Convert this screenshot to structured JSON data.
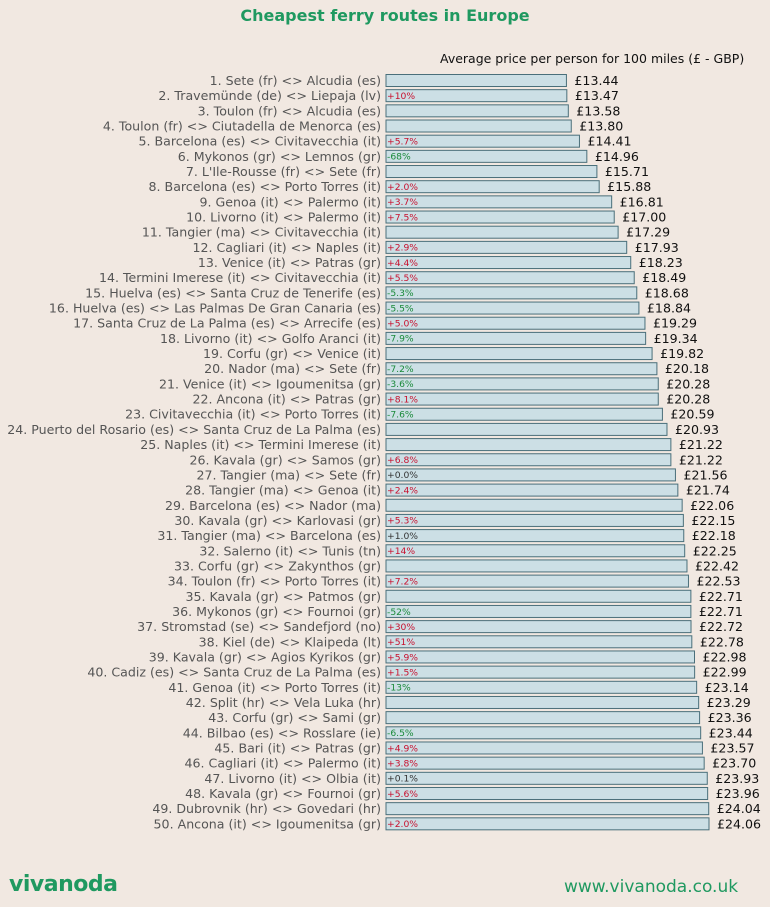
{
  "header": {
    "title": "Cheapest ferry routes in Europe",
    "subtitle": "Average price per person for 100 miles (£ - GBP)"
  },
  "footer": {
    "brand": "vivanoda",
    "website": "www.vivanoda.co.uk"
  },
  "colors": {
    "accent": "#1f9960",
    "bar_fill": "#ccdfe5",
    "bar_stroke": "#4a6f7a",
    "increase": "#c8102e",
    "decrease": "#1a8a3a",
    "neutral": "#333333"
  },
  "chart_data": {
    "type": "bar",
    "orientation": "horizontal",
    "title": "Cheapest ferry routes in Europe",
    "subtitle": "Average price per person for 100 miles (£ - GBP)",
    "currency": "£",
    "xlim": [
      0,
      24.06
    ],
    "grid": false,
    "categories": [
      "1. Sete (fr) <> Alcudia (es)",
      "2. Travemünde (de) <> Liepaja (lv)",
      "3. Toulon (fr) <> Alcudia (es)",
      "4. Toulon (fr) <> Ciutadella de Menorca (es)",
      "5. Barcelona (es) <> Civitavecchia (it)",
      "6. Mykonos (gr) <> Lemnos (gr)",
      "7. L'Ile-Rousse (fr) <> Sete (fr)",
      "8. Barcelona (es) <> Porto Torres (it)",
      "9. Genoa (it) <> Palermo (it)",
      "10. Livorno (it) <> Palermo (it)",
      "11. Tangier (ma) <> Civitavecchia (it)",
      "12. Cagliari (it) <> Naples (it)",
      "13. Venice (it) <> Patras (gr)",
      "14. Termini Imerese (it) <> Civitavecchia (it)",
      "15. Huelva (es) <> Santa Cruz de Tenerife (es)",
      "16. Huelva (es) <> Las Palmas De Gran Canaria (es)",
      "17. Santa Cruz de La Palma (es) <> Arrecife (es)",
      "18. Livorno (it) <> Golfo Aranci (it)",
      "19. Corfu (gr) <> Venice (it)",
      "20. Nador (ma) <> Sete (fr)",
      "21. Venice (it) <> Igoumenitsa (gr)",
      "22. Ancona (it) <> Patras (gr)",
      "23. Civitavecchia (it) <> Porto Torres (it)",
      "24. Puerto del Rosario (es) <> Santa Cruz de La Palma (es)",
      "25. Naples (it) <> Termini Imerese (it)",
      "26. Kavala (gr) <> Samos (gr)",
      "27. Tangier (ma) <> Sete (fr)",
      "28. Tangier (ma) <> Genoa (it)",
      "29. Barcelona (es) <> Nador (ma)",
      "30. Kavala (gr) <> Karlovasi (gr)",
      "31. Tangier (ma) <> Barcelona (es)",
      "32. Salerno (it) <> Tunis (tn)",
      "33. Corfu (gr) <> Zakynthos (gr)",
      "34. Toulon (fr) <> Porto Torres (it)",
      "35. Kavala (gr) <> Patmos (gr)",
      "36. Mykonos (gr) <> Fournoi (gr)",
      "37. Stromstad (se) <> Sandefjord (no)",
      "38. Kiel (de) <> Klaipeda (lt)",
      "39. Kavala (gr) <> Agios Kyrikos (gr)",
      "40. Cadiz (es) <> Santa Cruz de La Palma (es)",
      "41. Genoa (it) <> Porto Torres (it)",
      "42. Split (hr) <> Vela Luka (hr)",
      "43. Corfu (gr) <> Sami (gr)",
      "44. Bilbao (es) <> Rosslare (ie)",
      "45. Bari (it) <> Patras (gr)",
      "46. Cagliari (it) <> Palermo (it)",
      "47. Livorno (it) <> Olbia (it)",
      "48. Kavala (gr) <> Fournoi (gr)",
      "49. Dubrovnik (hr) <> Govedari (hr)",
      "50. Ancona (it) <> Igoumenitsa (gr)"
    ],
    "values": [
      13.44,
      13.47,
      13.58,
      13.8,
      14.41,
      14.96,
      15.71,
      15.88,
      16.81,
      17.0,
      17.29,
      17.93,
      18.23,
      18.49,
      18.68,
      18.84,
      19.29,
      19.34,
      19.82,
      20.18,
      20.28,
      20.28,
      20.59,
      20.93,
      21.22,
      21.22,
      21.56,
      21.74,
      22.06,
      22.15,
      22.18,
      22.25,
      22.42,
      22.53,
      22.71,
      22.71,
      22.72,
      22.78,
      22.98,
      22.99,
      23.14,
      23.29,
      23.36,
      23.44,
      23.57,
      23.7,
      23.93,
      23.96,
      24.04,
      24.06
    ],
    "price_labels": [
      "£13.44",
      "£13.47",
      "£13.58",
      "£13.80",
      "£14.41",
      "£14.96",
      "£15.71",
      "£15.88",
      "£16.81",
      "£17.00",
      "£17.29",
      "£17.93",
      "£18.23",
      "£18.49",
      "£18.68",
      "£18.84",
      "£19.29",
      "£19.34",
      "£19.82",
      "£20.18",
      "£20.28",
      "£20.28",
      "£20.59",
      "£20.93",
      "£21.22",
      "£21.22",
      "£21.56",
      "£21.74",
      "£22.06",
      "£22.15",
      "£22.18",
      "£22.25",
      "£22.42",
      "£22.53",
      "£22.71",
      "£22.71",
      "£22.72",
      "£22.78",
      "£22.98",
      "£22.99",
      "£23.14",
      "£23.29",
      "£23.36",
      "£23.44",
      "£23.57",
      "£23.70",
      "£23.93",
      "£23.96",
      "£24.04",
      "£24.06"
    ],
    "changes": [
      "",
      "+10%",
      "",
      "",
      "+5.7%",
      "-68%",
      "",
      "+2.0%",
      "+3.7%",
      "+7.5%",
      "",
      "+2.9%",
      "+4.4%",
      "+5.5%",
      "-5.3%",
      "-5.5%",
      "+5.0%",
      "-7.9%",
      "",
      "-7.2%",
      "-3.6%",
      "+8.1%",
      "-7.6%",
      "",
      "",
      "+6.8%",
      "+0.0%",
      "+2.4%",
      "",
      "+5.3%",
      "+1.0%",
      "+14%",
      "",
      "+7.2%",
      "",
      "-52%",
      "+30%",
      "+51%",
      "+5.9%",
      "+1.5%",
      "-13%",
      "",
      "",
      "-6.5%",
      "+4.9%",
      "+3.8%",
      "+0.1%",
      "+5.6%",
      "",
      "+2.0%"
    ]
  }
}
